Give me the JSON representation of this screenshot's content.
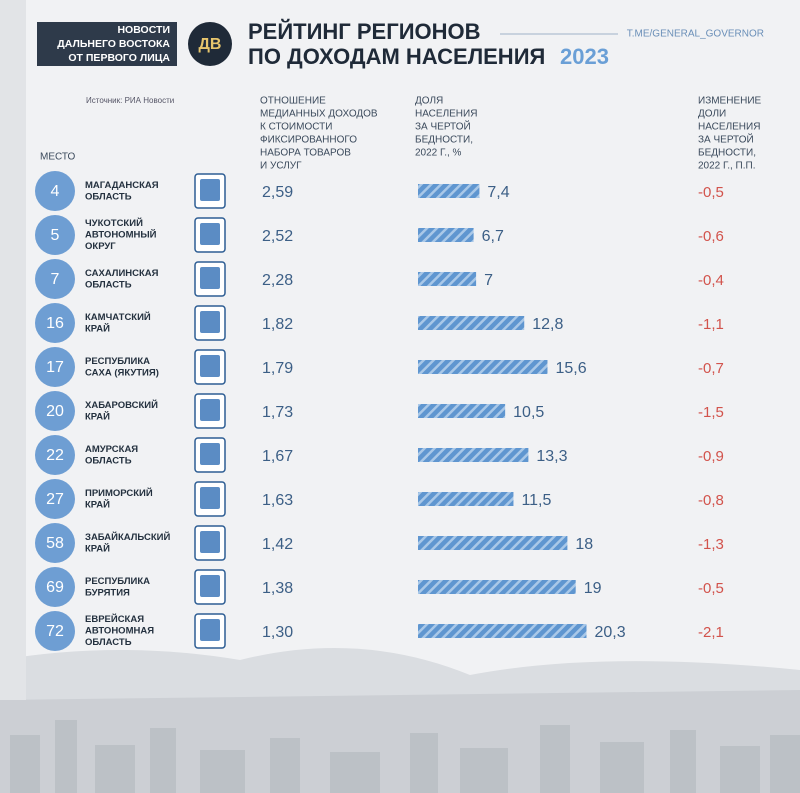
{
  "header": {
    "badge": [
      "НОВОСТИ",
      "ДАЛЬНЕГО ВОСТОКА",
      "ОТ ПЕРВОГО ЛИЦА"
    ],
    "logo": "ДВ",
    "title": [
      "РЕЙТИНГ РЕГИОНОВ",
      "ПО ДОХОДАМ НАСЕЛЕНИЯ"
    ],
    "year": "2023",
    "channel": "T.ME/GENERAL_GOVERNOR",
    "source": "Источник: РИА Новости"
  },
  "table": {
    "columns": {
      "rank": [
        "МЕСТО"
      ],
      "income_ratio": [
        "ОТНОШЕНИЕ",
        "МЕДИАННЫХ ДОХОДОВ",
        "К СТОИМОСТИ",
        "ФИКСИРОВАННОГО",
        "НАБОРА ТОВАРОВ",
        "И УСЛУГ"
      ],
      "poverty_share": [
        "ДОЛЯ",
        "НАСЕЛЕНИЯ",
        "ЗА ЧЕРТОЙ",
        "БЕДНОСТИ,",
        "2022 Г., %"
      ],
      "poverty_change": [
        "ИЗМЕНЕНИЕ",
        "ДОЛИ",
        "НАСЕЛЕНИЯ",
        "ЗА ЧЕРТОЙ",
        "БЕДНОСТИ,",
        "2022 Г., П.П."
      ]
    },
    "rows": [
      {
        "rank": 4,
        "region": [
          "МАГАДАНСКАЯ",
          "ОБЛАСТЬ"
        ],
        "income_ratio": "2,59",
        "poverty_share": 7.4,
        "poverty_share_label": "7,4",
        "poverty_change": "-0,5"
      },
      {
        "rank": 5,
        "region": [
          "ЧУКОТСКИЙ",
          "АВТОНОМНЫЙ",
          "ОКРУГ"
        ],
        "income_ratio": "2,52",
        "poverty_share": 6.7,
        "poverty_share_label": "6,7",
        "poverty_change": "-0,6"
      },
      {
        "rank": 7,
        "region": [
          "САХАЛИНСКАЯ",
          "ОБЛАСТЬ"
        ],
        "income_ratio": "2,28",
        "poverty_share": 7,
        "poverty_share_label": "7",
        "poverty_change": "-0,4"
      },
      {
        "rank": 16,
        "region": [
          "КАМЧАТСКИЙ",
          "КРАЙ"
        ],
        "income_ratio": "1,82",
        "poverty_share": 12.8,
        "poverty_share_label": "12,8",
        "poverty_change": "-1,1"
      },
      {
        "rank": 17,
        "region": [
          "РЕСПУБЛИКА",
          "САХА (ЯКУТИЯ)"
        ],
        "income_ratio": "1,79",
        "poverty_share": 15.6,
        "poverty_share_label": "15,6",
        "poverty_change": "-0,7"
      },
      {
        "rank": 20,
        "region": [
          "ХАБАРОВСКИЙ",
          "КРАЙ"
        ],
        "income_ratio": "1,73",
        "poverty_share": 10.5,
        "poverty_share_label": "10,5",
        "poverty_change": "-1,5"
      },
      {
        "rank": 22,
        "region": [
          "АМУРСКАЯ",
          "ОБЛАСТЬ"
        ],
        "income_ratio": "1,67",
        "poverty_share": 13.3,
        "poverty_share_label": "13,3",
        "poverty_change": "-0,9"
      },
      {
        "rank": 27,
        "region": [
          "ПРИМОРСКИЙ",
          "КРАЙ"
        ],
        "income_ratio": "1,63",
        "poverty_share": 11.5,
        "poverty_share_label": "11,5",
        "poverty_change": "-0,8"
      },
      {
        "rank": 58,
        "region": [
          "ЗАБАЙКАЛЬСКИЙ",
          "КРАЙ"
        ],
        "income_ratio": "1,42",
        "poverty_share": 18,
        "poverty_share_label": "18",
        "poverty_change": "-1,3"
      },
      {
        "rank": 69,
        "region": [
          "РЕСПУБЛИКА",
          "БУРЯТИЯ"
        ],
        "income_ratio": "1,38",
        "poverty_share": 19,
        "poverty_share_label": "19",
        "poverty_change": "-0,5"
      },
      {
        "rank": 72,
        "region": [
          "ЕВРЕЙСКАЯ",
          "АВТОНОМНАЯ",
          "ОБЛАСТЬ"
        ],
        "income_ratio": "1,30",
        "poverty_share": 20.3,
        "poverty_share_label": "20,3",
        "poverty_change": "-2,1"
      }
    ]
  }
}
